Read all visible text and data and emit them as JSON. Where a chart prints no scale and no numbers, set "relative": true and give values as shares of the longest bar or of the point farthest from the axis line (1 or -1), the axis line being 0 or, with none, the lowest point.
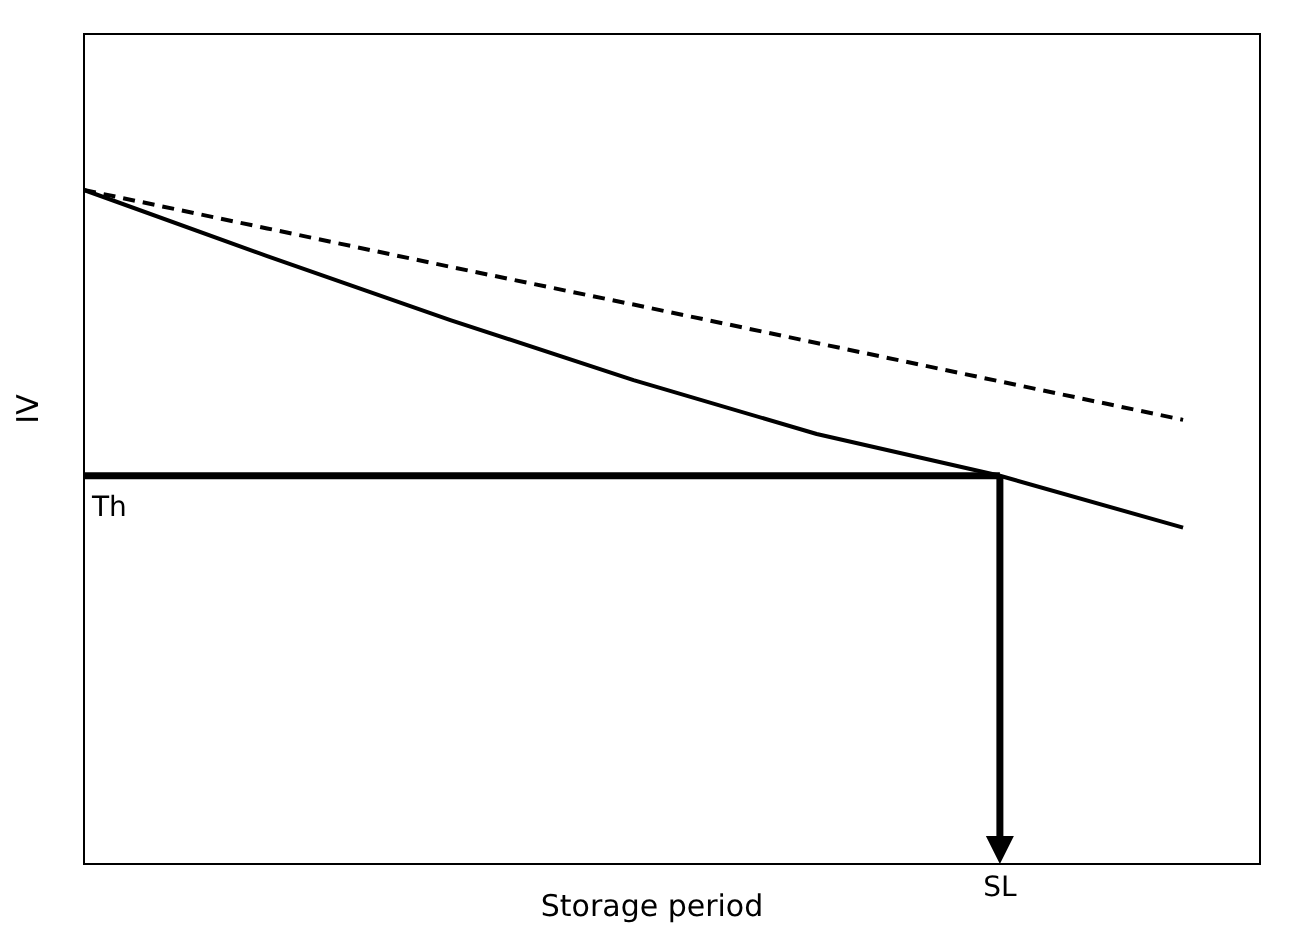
{
  "chart_data": {
    "type": "line",
    "relative": true,
    "xlabel": "Storage period",
    "ylabel": "IV",
    "tick_labels": false,
    "categories": [
      null,
      null,
      null,
      null,
      null,
      null,
      null
    ],
    "series": [
      {
        "color": "#000000",
        "line_style": "solid",
        "values": [
          1,
          0.902,
          0.807,
          0.718,
          0.638,
          0.576,
          0.499
        ]
      },
      {
        "color": "#000000",
        "line_style": "dashed",
        "values": [
          1,
          0.943,
          0.886,
          0.83,
          0.773,
          0.716,
          0.659
        ]
      }
    ],
    "ref_lines": [
      {
        "axis": "y",
        "value": 0.576,
        "label": "Th",
        "color": "#000000"
      }
    ],
    "annotations": [
      "SL"
    ]
  }
}
